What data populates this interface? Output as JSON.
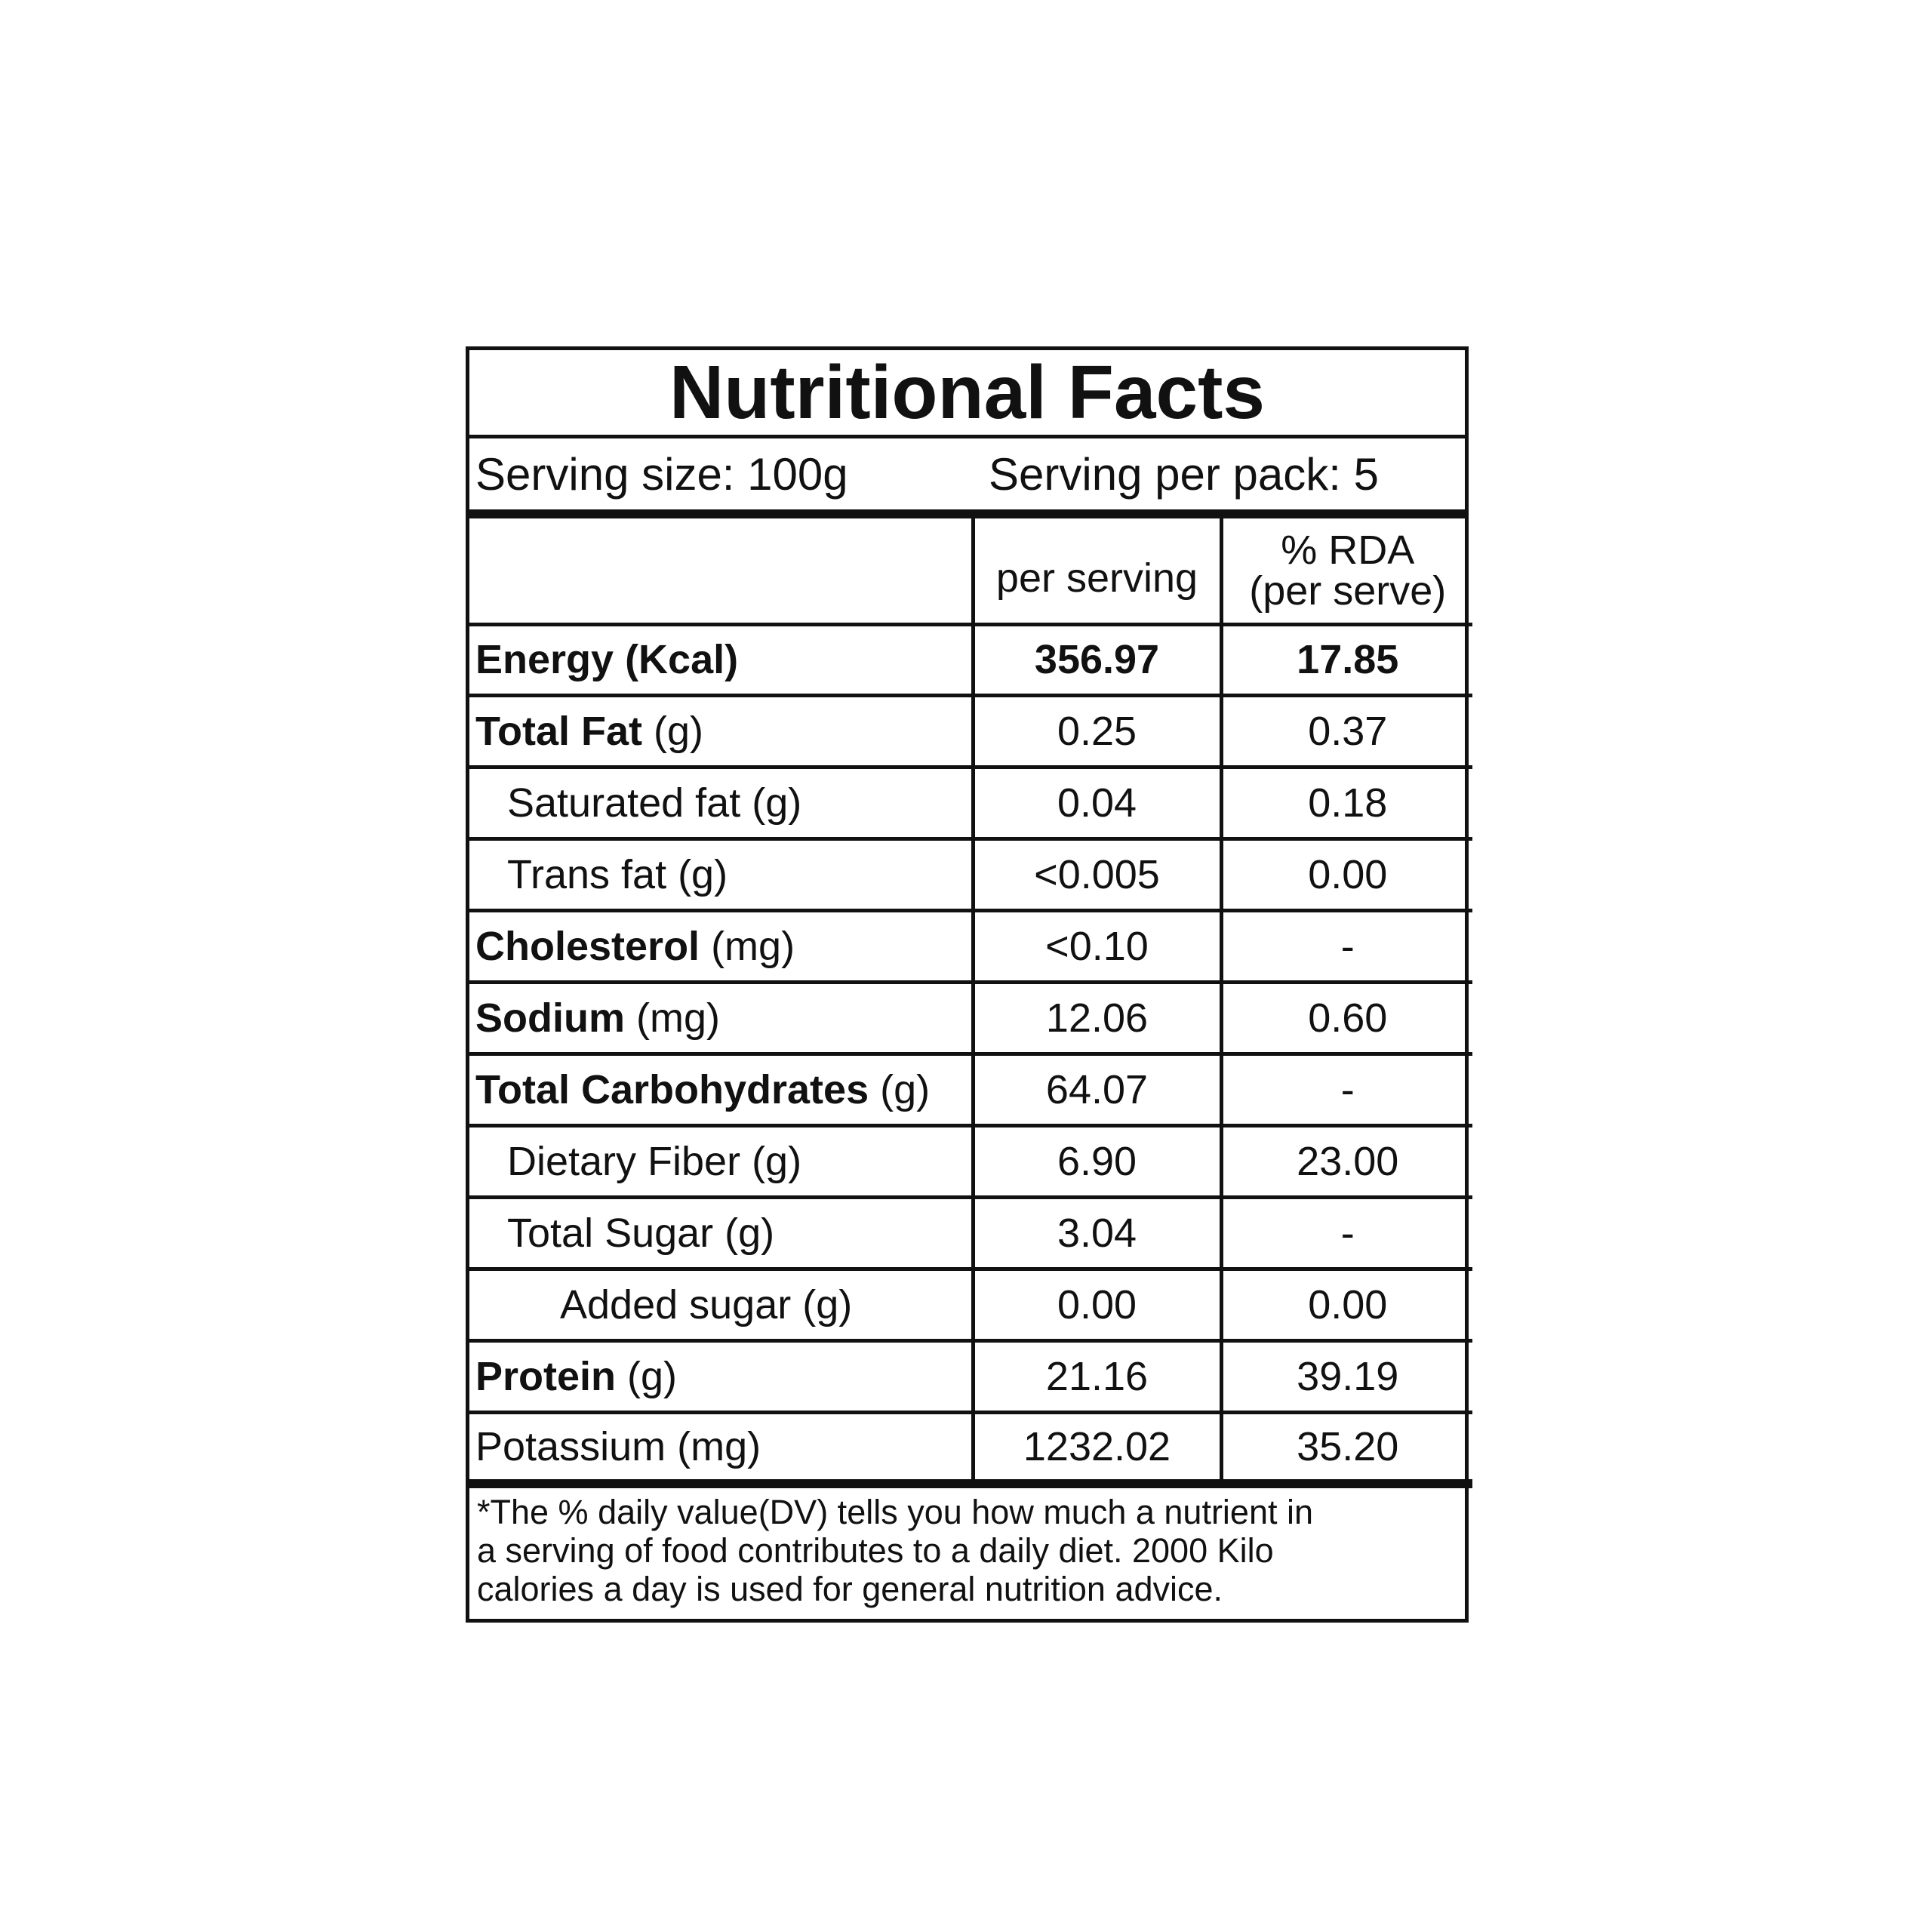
{
  "title": "Nutritional Facts",
  "serving_size": "Serving size: 100g",
  "serving_per_pack": "Serving per pack: 5",
  "columns": {
    "per_serving": "per serving",
    "rda_line1": "% RDA",
    "rda_line2": "(per serve)"
  },
  "rows": [
    {
      "name": "Energy (Kcal)",
      "unit": "",
      "per_serving": "356.97",
      "rda": "17.85"
    },
    {
      "name": "Total Fat",
      "unit": " (g)",
      "per_serving": "0.25",
      "rda": "0.37"
    },
    {
      "name": "Saturated fat (g)",
      "unit": "",
      "per_serving": "0.04",
      "rda": "0.18"
    },
    {
      "name": "Trans fat (g)",
      "unit": "",
      "per_serving": "<0.005",
      "rda": "0.00"
    },
    {
      "name": "Cholesterol",
      "unit": " (mg)",
      "per_serving": "<0.10",
      "rda": "-"
    },
    {
      "name": "Sodium",
      "unit": " (mg)",
      "per_serving": "12.06",
      "rda": "0.60"
    },
    {
      "name": "Total Carbohydrates",
      "unit": " (g)",
      "per_serving": "64.07",
      "rda": "-"
    },
    {
      "name": "Dietary Fiber (g)",
      "unit": "",
      "per_serving": "6.90",
      "rda": "23.00"
    },
    {
      "name": "Total Sugar (g)",
      "unit": "",
      "per_serving": "3.04",
      "rda": "-"
    },
    {
      "name": "Added sugar (g)",
      "unit": "",
      "per_serving": "0.00",
      "rda": "0.00"
    },
    {
      "name": "Protein",
      "unit": " (g)",
      "per_serving": "21.16",
      "rda": "39.19"
    },
    {
      "name": "Potassium (mg)",
      "unit": "",
      "per_serving": "1232.02",
      "rda": "35.20"
    }
  ],
  "footer": [
    "*The % daily value(DV) tells you how much a nutrient in",
    "a serving of food contributes to a daily diet. 2000 Kilo",
    "calories a day is used for general nutrition advice."
  ]
}
